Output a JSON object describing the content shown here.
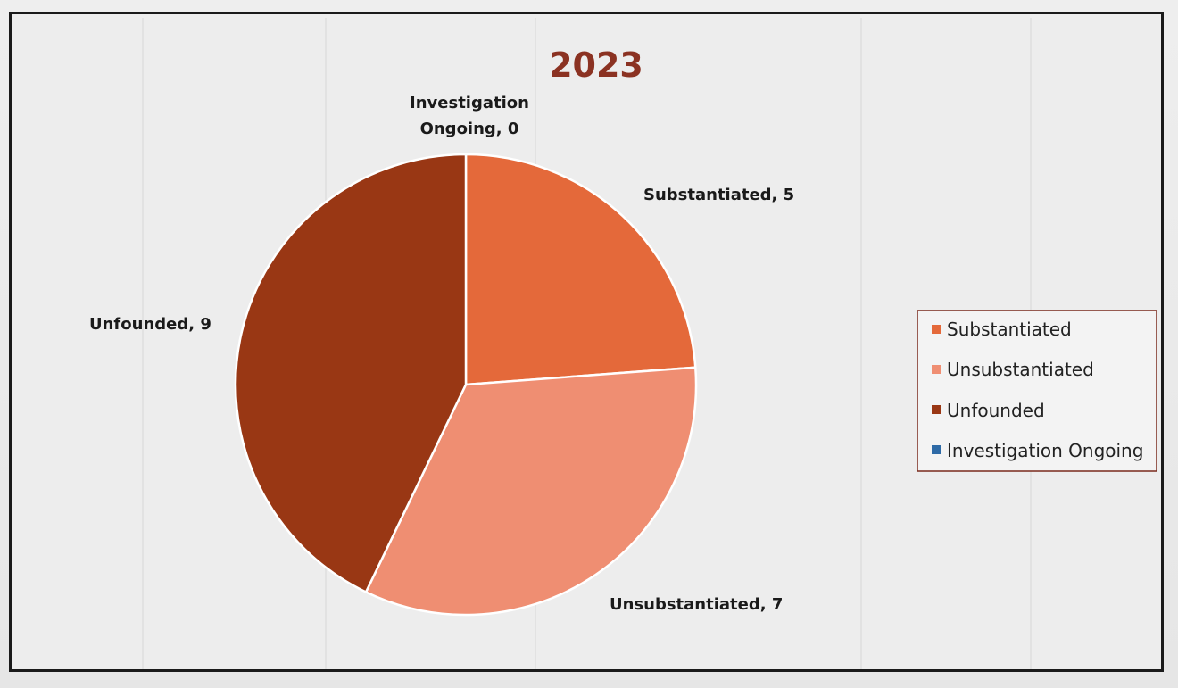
{
  "chart_data": {
    "type": "pie",
    "title": "2023",
    "title_color": "#8b3222",
    "slices": [
      {
        "label": "Substantiated",
        "value": 5,
        "color": "#e4693a"
      },
      {
        "label": "Unsubstantiated",
        "value": 7,
        "color": "#ef8e72"
      },
      {
        "label": "Unfounded",
        "value": 9,
        "color": "#993714"
      },
      {
        "label": "Investigation Ongoing",
        "value": 0,
        "color": "#2e6aa6"
      }
    ],
    "data_labels": [
      "Substantiated, 5",
      "Unsubstantiated, 7",
      "Unfounded, 9",
      "Investigation",
      "Ongoing, 0"
    ],
    "legend": {
      "position": "right",
      "entries": [
        "Substantiated",
        "Unsubstantiated",
        "Unfounded",
        "Investigation Ongoing"
      ]
    },
    "start_angle": "12 o'clock",
    "direction": "clockwise"
  }
}
